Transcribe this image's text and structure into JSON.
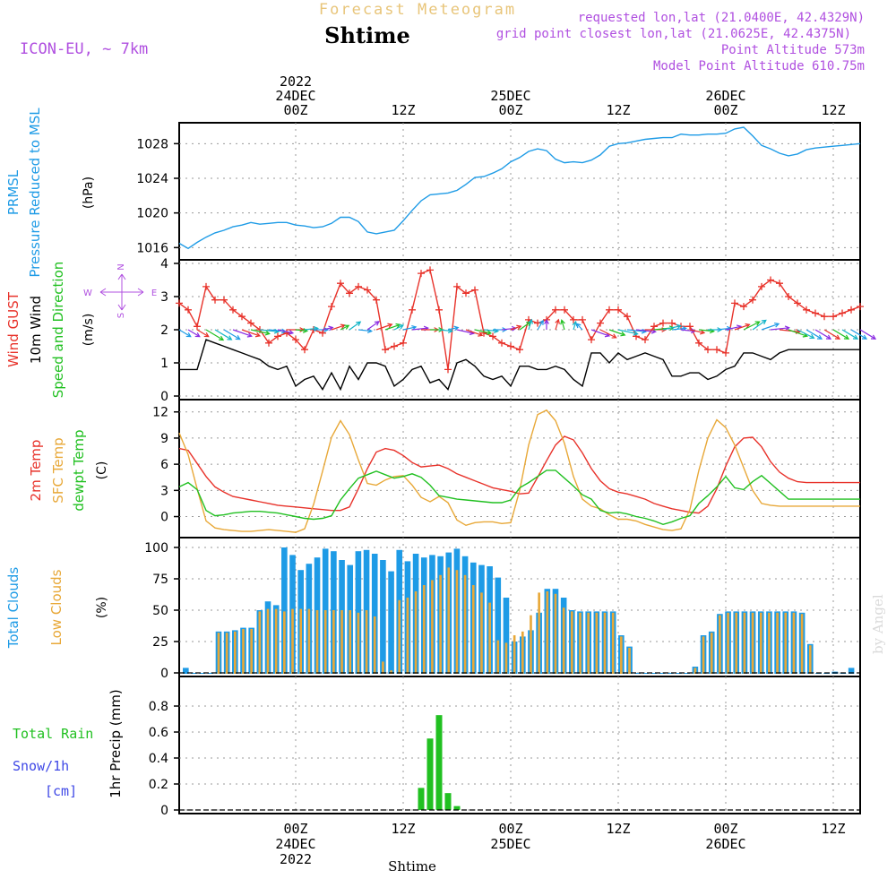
{
  "header": {
    "title": "Forecast Meteogram",
    "location": "Shtime",
    "model": "ICON-EU, ~ 7km",
    "requested": "requested lon,lat (21.0400E, 42.4329N)",
    "gridpoint": "grid point closest lon,lat (21.0625E, 42.4375N)",
    "point_alt": "Point Altitude 573m",
    "model_alt": "Model Point Altitude 610.75m",
    "watermark": "by Angel",
    "footer_location": "Shtime"
  },
  "time_axis": {
    "top_labels": [
      {
        "lines": [
          "2022",
          "24DEC",
          "00Z"
        ],
        "x": 13
      },
      {
        "lines": [
          "12Z"
        ],
        "x": 25
      },
      {
        "lines": [
          "25DEC",
          "00Z"
        ],
        "x": 37
      },
      {
        "lines": [
          "12Z"
        ],
        "x": 49
      },
      {
        "lines": [
          "26DEC",
          "00Z"
        ],
        "x": 61
      },
      {
        "lines": [
          "12Z"
        ],
        "x": 73
      }
    ],
    "bottom_labels": [
      {
        "lines": [
          "00Z",
          "24DEC",
          "2022"
        ],
        "x": 13
      },
      {
        "lines": [
          "12Z"
        ],
        "x": 25
      },
      {
        "lines": [
          "00Z",
          "25DEC"
        ],
        "x": 37
      },
      {
        "lines": [
          "12Z"
        ],
        "x": 49
      },
      {
        "lines": [
          "00Z",
          "26DEC"
        ],
        "x": 61
      },
      {
        "lines": [
          "12Z"
        ],
        "x": 73
      }
    ]
  },
  "chart_data": [
    {
      "type": "line",
      "panel": "pressure",
      "ylabel_lines": [
        "PRMSL",
        "Pressure Reduced to MSL"
      ],
      "unit": "(hPa)",
      "ylim": [
        1015,
        1030
      ],
      "yticks": [
        1016,
        1020,
        1024,
        1028
      ],
      "series": [
        {
          "name": "PRMSL",
          "color": "#1E9BE6",
          "x": [
            0,
            1,
            2,
            3,
            4,
            5,
            6,
            7,
            8,
            9,
            10,
            11,
            12,
            13,
            14,
            15,
            16,
            17,
            18,
            19,
            20,
            21,
            22,
            23,
            24,
            25,
            26,
            27,
            28,
            29,
            30,
            31,
            32,
            33,
            34,
            35,
            36,
            37,
            38,
            39,
            40,
            41,
            42,
            43,
            44,
            45,
            46,
            47,
            48,
            49,
            50,
            51,
            52,
            53,
            54,
            55,
            56,
            57,
            58,
            59,
            60,
            61,
            62,
            63,
            64,
            65,
            66,
            67,
            68,
            69,
            70,
            71,
            72,
            73,
            74,
            75,
            76
          ],
          "values": [
            1016.5,
            1015.9,
            1016.6,
            1017.2,
            1017.7,
            1018.0,
            1018.4,
            1018.6,
            1018.9,
            1018.7,
            1018.8,
            1018.9,
            1018.9,
            1018.6,
            1018.5,
            1018.3,
            1018.4,
            1018.8,
            1019.5,
            1019.5,
            1019.0,
            1017.8,
            1017.6,
            1017.8,
            1018.0,
            1019.1,
            1020.3,
            1021.4,
            1022.1,
            1022.2,
            1022.3,
            1022.6,
            1023.3,
            1024.1,
            1024.2,
            1024.6,
            1025.1,
            1025.9,
            1026.4,
            1027.1,
            1027.4,
            1027.2,
            1026.2,
            1025.8,
            1025.9,
            1025.8,
            1026.1,
            1026.7,
            1027.7,
            1028.0,
            1028.1,
            1028.3,
            1028.5,
            1028.6,
            1028.7,
            1028.7,
            1029.1,
            1029.0,
            1029.0,
            1029.1,
            1029.1,
            1029.2,
            1029.7,
            1029.9,
            1028.9,
            1027.8,
            1027.4,
            1026.9,
            1026.6,
            1026.8,
            1027.3,
            1027.5,
            1027.6,
            1027.7,
            1027.8,
            1027.9,
            1028.0
          ]
        }
      ]
    },
    {
      "type": "line",
      "panel": "wind",
      "ylabel_lines": [
        "Wind GUST",
        "10m Wind",
        "Speed and Direction"
      ],
      "ylabel_colors": [
        "#E8322A",
        "#000000",
        "#21C021"
      ],
      "unit": "(m/s)",
      "ylim": [
        0,
        4
      ],
      "yticks": [
        0,
        1,
        2,
        3,
        4
      ],
      "compass": [
        "N",
        "S",
        "W",
        "E"
      ],
      "series": [
        {
          "name": "Wind GUST",
          "color": "#E8322A",
          "markers": "plus",
          "values": [
            2.8,
            2.6,
            2.1,
            3.3,
            2.9,
            2.9,
            2.6,
            2.4,
            2.2,
            2.0,
            1.6,
            1.8,
            1.9,
            1.7,
            1.4,
            2.0,
            1.9,
            2.7,
            3.4,
            3.1,
            3.3,
            3.2,
            2.9,
            1.4,
            1.5,
            1.6,
            2.6,
            3.7,
            3.8,
            2.6,
            0.8,
            3.3,
            3.1,
            3.2,
            1.9,
            1.8,
            1.6,
            1.5,
            1.4,
            2.3,
            2.2,
            2.3,
            2.6,
            2.6,
            2.3,
            2.3,
            1.7,
            2.2,
            2.6,
            2.6,
            2.4,
            1.8,
            1.7,
            2.1,
            2.2,
            2.2,
            2.1,
            2.1,
            1.6,
            1.4,
            1.4,
            1.3,
            2.8,
            2.7,
            2.9,
            3.3,
            3.5,
            3.4,
            3.0,
            2.8,
            2.6,
            2.5,
            2.4,
            2.4,
            2.5,
            2.6,
            2.7
          ]
        },
        {
          "name": "10m Wind",
          "color": "#000000",
          "values": [
            0.8,
            0.8,
            0.8,
            1.7,
            1.6,
            1.5,
            1.4,
            1.3,
            1.2,
            1.1,
            0.9,
            0.8,
            0.9,
            0.3,
            0.5,
            0.6,
            0.2,
            0.7,
            0.2,
            0.9,
            0.5,
            1.0,
            1.0,
            0.9,
            0.3,
            0.5,
            0.8,
            0.9,
            0.4,
            0.5,
            0.2,
            1.0,
            1.1,
            0.9,
            0.6,
            0.5,
            0.6,
            0.3,
            0.9,
            0.9,
            0.8,
            0.8,
            0.9,
            0.8,
            0.5,
            0.3,
            1.3,
            1.3,
            1.0,
            1.3,
            1.1,
            1.2,
            1.3,
            1.2,
            1.1,
            0.6,
            0.6,
            0.7,
            0.7,
            0.5,
            0.6,
            0.8,
            0.9,
            1.3,
            1.3,
            1.2,
            1.1,
            1.3,
            1.4,
            1.4,
            1.4,
            1.4,
            1.4,
            1.4,
            1.4,
            1.4,
            1.4
          ]
        }
      ],
      "wind_dirs": [
        45,
        45,
        45,
        45,
        45,
        45,
        60,
        60,
        70,
        80,
        80,
        70,
        90,
        80,
        100,
        90,
        110,
        120,
        130,
        140,
        80,
        140,
        120,
        120,
        130,
        110,
        100,
        90,
        90,
        80,
        110,
        70,
        60,
        70,
        80,
        90,
        100,
        120,
        140,
        170,
        160,
        180,
        170,
        190,
        170,
        210,
        60,
        50,
        60,
        70,
        80,
        80,
        90,
        100,
        110,
        100,
        80,
        70,
        80,
        90,
        100,
        110,
        120,
        130,
        140,
        120,
        100,
        80,
        60,
        50,
        45,
        45,
        45,
        45,
        45,
        45,
        45
      ]
    },
    {
      "type": "line",
      "panel": "temperature",
      "ylabel_lines": [
        "2m Temp",
        "SFC Temp",
        "dewpt Temp"
      ],
      "ylabel_colors": [
        "#E8322A",
        "#E8A838",
        "#21C021"
      ],
      "unit": "(C)",
      "ylim": [
        -2,
        13
      ],
      "yticks": [
        0,
        3,
        6,
        9,
        12
      ],
      "series": [
        {
          "name": "2m Temp",
          "color": "#E8322A",
          "values": [
            7.8,
            7.6,
            6.1,
            4.6,
            3.4,
            2.8,
            2.3,
            2.1,
            1.9,
            1.7,
            1.5,
            1.3,
            1.2,
            1.1,
            1.0,
            0.9,
            0.8,
            0.7,
            0.7,
            1.1,
            3.2,
            5.5,
            7.4,
            7.8,
            7.6,
            7.0,
            6.2,
            5.7,
            5.8,
            5.9,
            5.5,
            4.9,
            4.5,
            4.1,
            3.7,
            3.3,
            3.1,
            2.9,
            2.6,
            2.7,
            4.5,
            6.4,
            8.2,
            9.2,
            8.8,
            7.3,
            5.5,
            4.1,
            3.2,
            2.8,
            2.6,
            2.3,
            2.0,
            1.5,
            1.2,
            0.9,
            0.7,
            0.5,
            0.4,
            1.2,
            3.2,
            5.8,
            8.0,
            9.0,
            9.1,
            8.0,
            6.3,
            5.1,
            4.4,
            4.0,
            3.9,
            3.9,
            3.9,
            3.9,
            3.9,
            3.9,
            3.9
          ]
        },
        {
          "name": "SFC Temp",
          "color": "#E8A838",
          "values": [
            9.6,
            7.1,
            3.2,
            -0.5,
            -1.3,
            -1.5,
            -1.6,
            -1.7,
            -1.7,
            -1.6,
            -1.5,
            -1.6,
            -1.7,
            -1.8,
            -1.4,
            1.4,
            5.2,
            9.1,
            11.0,
            9.4,
            6.5,
            3.8,
            3.6,
            4.2,
            4.6,
            4.7,
            3.6,
            2.2,
            1.7,
            2.3,
            1.6,
            -0.4,
            -1.0,
            -0.7,
            -0.6,
            -0.6,
            -0.8,
            -0.7,
            3.0,
            8.2,
            11.7,
            12.2,
            11.0,
            8.4,
            4.6,
            2.0,
            1.2,
            0.9,
            0.2,
            -0.3,
            -0.3,
            -0.5,
            -0.9,
            -1.2,
            -1.5,
            -1.6,
            -1.4,
            0.8,
            5.3,
            9.0,
            11.1,
            10.2,
            8.2,
            5.6,
            3.0,
            1.5,
            1.3,
            1.2,
            1.2,
            1.2,
            1.2,
            1.2,
            1.2,
            1.2,
            1.2,
            1.2,
            1.2
          ]
        },
        {
          "name": "dewpt Temp",
          "color": "#21C021",
          "values": [
            3.4,
            3.9,
            3.1,
            0.7,
            0.1,
            0.2,
            0.4,
            0.5,
            0.6,
            0.6,
            0.5,
            0.4,
            0.2,
            0.0,
            -0.2,
            -0.3,
            -0.2,
            0.1,
            1.9,
            3.2,
            4.4,
            4.8,
            5.2,
            4.8,
            4.4,
            4.6,
            4.9,
            4.5,
            3.6,
            2.4,
            2.2,
            2.0,
            1.9,
            1.8,
            1.7,
            1.6,
            1.6,
            1.9,
            3.3,
            3.9,
            4.6,
            5.3,
            5.3,
            4.4,
            3.5,
            2.5,
            2.0,
            0.7,
            0.4,
            0.5,
            0.3,
            0.0,
            -0.2,
            -0.5,
            -0.9,
            -0.6,
            -0.2,
            0.1,
            1.5,
            2.4,
            3.4,
            4.6,
            3.3,
            3.1,
            4.0,
            4.7,
            3.8,
            2.9,
            2.0,
            2.0,
            2.0,
            2.0,
            2.0,
            2.0,
            2.0,
            2.0,
            2.0
          ]
        }
      ]
    },
    {
      "type": "bar",
      "panel": "clouds",
      "ylabel_lines": [
        "Total Clouds",
        "Low Clouds"
      ],
      "ylabel_colors": [
        "#1E9BE6",
        "#E8A838"
      ],
      "unit": "(%)",
      "ylim": [
        0,
        105
      ],
      "yticks": [
        0,
        25,
        50,
        75,
        100
      ],
      "series": [
        {
          "name": "Total Clouds",
          "color": "#1E9BE6",
          "values": [
            4,
            0,
            0,
            0,
            33,
            33,
            34,
            36,
            36,
            50,
            57,
            54,
            100,
            94,
            82,
            87,
            92,
            99,
            97,
            90,
            86,
            97,
            98,
            95,
            90,
            81,
            98,
            89,
            95,
            92,
            94,
            93,
            96,
            99,
            93,
            88,
            86,
            85,
            76,
            60,
            25,
            29,
            34,
            48,
            67,
            67,
            60,
            50,
            49,
            49,
            49,
            49,
            49,
            30,
            21,
            0,
            0,
            0,
            0,
            0,
            0,
            0,
            5,
            30,
            33,
            47,
            49,
            49,
            49,
            49,
            49,
            49,
            49,
            49,
            49,
            48,
            23,
            0,
            0,
            1,
            0,
            4
          ]
        },
        {
          "name": "Low Clouds",
          "color": "#E8A838",
          "values": [
            0,
            0,
            0,
            0,
            32,
            32,
            33,
            35,
            35,
            49,
            51,
            51,
            49,
            51,
            51,
            51,
            50,
            50,
            50,
            50,
            50,
            48,
            50,
            45,
            9,
            2,
            58,
            60,
            65,
            70,
            74,
            78,
            84,
            82,
            78,
            70,
            64,
            56,
            26,
            24,
            30,
            33,
            46,
            64,
            65,
            63,
            52,
            49,
            48,
            48,
            48,
            48,
            48,
            29,
            20,
            0,
            0,
            0,
            0,
            0,
            0,
            0,
            4,
            29,
            32,
            46,
            48,
            48,
            48,
            48,
            48,
            48,
            48,
            48,
            48,
            47,
            22,
            0,
            0,
            0,
            0,
            0
          ]
        }
      ]
    },
    {
      "type": "bar",
      "panel": "precip",
      "ylabel_lines": [
        "Total  Rain",
        "Snow/1h",
        "[cm]"
      ],
      "ylabel_colors": [
        "#21C021",
        "#3F48E6",
        "#3F48E6"
      ],
      "unit": "1hr Precip (mm)",
      "ylim": [
        0,
        1.0
      ],
      "yticks": [
        0,
        0.2,
        0.4,
        0.6,
        0.8
      ],
      "series": [
        {
          "name": "Total Rain",
          "color": "#21C021",
          "x": [
            27,
            28,
            29,
            30,
            31
          ],
          "values": [
            0.17,
            0.55,
            0.73,
            0.13,
            0.03
          ]
        }
      ]
    }
  ]
}
